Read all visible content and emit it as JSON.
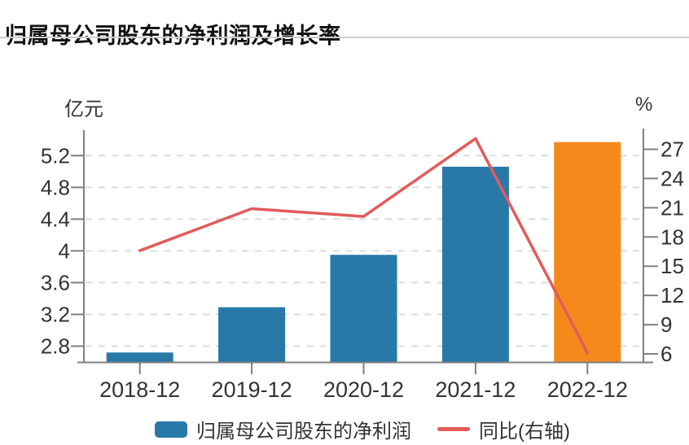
{
  "page": {
    "title": "归属母公司股东的净利润及增长率"
  },
  "chart_data": {
    "type": "bar",
    "title": "归属母公司股东的净利润及增长率",
    "categories": [
      "2018-12",
      "2019-12",
      "2020-12",
      "2021-12",
      "2022-12"
    ],
    "series": [
      {
        "name": "归属母公司股东的净利润",
        "type": "bar",
        "axis": "left",
        "unit": "亿元",
        "values": [
          2.72,
          3.29,
          3.95,
          5.06,
          5.37
        ],
        "bar_colors": [
          "#2878a8",
          "#2878a8",
          "#2878a8",
          "#2878a8",
          "#f5891b"
        ]
      },
      {
        "name": "同比(右轴)",
        "type": "line",
        "axis": "right",
        "unit": "%",
        "values": [
          16.6,
          20.9,
          20.1,
          28.1,
          6.1
        ],
        "color": "#e25b5b"
      }
    ],
    "left_axis": {
      "label": "亿元",
      "ticks": [
        2.8,
        3.2,
        3.6,
        4,
        4.4,
        4.8,
        5.2
      ],
      "range": [
        2.6,
        5.5
      ]
    },
    "right_axis": {
      "label": "%",
      "ticks": [
        6,
        9,
        12,
        15,
        18,
        21,
        24,
        27
      ],
      "range": [
        5.17,
        28.79
      ]
    },
    "grid": {
      "horizontal": true,
      "style": "dashed"
    },
    "legend": {
      "position": "bottom",
      "entries": [
        "归属母公司股东的净利润",
        "同比(右轴)"
      ]
    }
  },
  "colors": {
    "bar_blue": "#2878a8",
    "bar_orange": "#f5891b",
    "line_red": "#e25b5b",
    "grid_line": "#dcdcdc",
    "axis_line": "#808080",
    "tick_text": "#333333",
    "title_text": "#111111",
    "divider": "#cccccc",
    "background": "#ffffff"
  }
}
